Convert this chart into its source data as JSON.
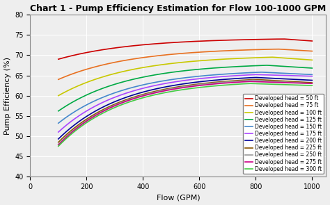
{
  "title": "Chart 1 - Pump Efficiency Estimation for Flow 100-1000 GPM",
  "xlabel": "Flow (GPM)",
  "ylabel": "Pump Efficiency (%)",
  "xlim": [
    0,
    1050
  ],
  "ylim": [
    40,
    80
  ],
  "xticks": [
    0,
    200,
    400,
    600,
    800,
    1000
  ],
  "yticks": [
    40,
    45,
    50,
    55,
    60,
    65,
    70,
    75,
    80
  ],
  "heads": [
    50,
    75,
    100,
    125,
    150,
    175,
    200,
    225,
    250,
    275,
    300
  ],
  "colors": [
    "#cc0000",
    "#e87020",
    "#c8c800",
    "#00aa44",
    "#4488cc",
    "#aa44ff",
    "#000099",
    "#885500",
    "#999999",
    "#cc0088",
    "#44cc44"
  ],
  "eff_at_100": [
    69.0,
    64.0,
    60.0,
    56.2,
    53.2,
    51.0,
    49.3,
    48.5,
    48.0,
    47.8,
    47.5
  ],
  "eff_at_1000": [
    73.5,
    71.0,
    68.8,
    66.8,
    65.2,
    64.8,
    63.8,
    63.2,
    63.0,
    63.0,
    62.5
  ],
  "eff_peak": [
    74.0,
    71.5,
    69.5,
    67.5,
    65.8,
    65.2,
    64.5,
    64.0,
    63.8,
    63.5,
    63.0
  ],
  "q_peak": [
    900,
    880,
    860,
    840,
    820,
    800,
    800,
    800,
    790,
    780,
    780
  ],
  "background_color": "#eeeeee",
  "grid_color": "#ffffff",
  "title_fontsize": 9,
  "axis_fontsize": 8,
  "tick_fontsize": 7,
  "legend_fontsize": 5.5
}
